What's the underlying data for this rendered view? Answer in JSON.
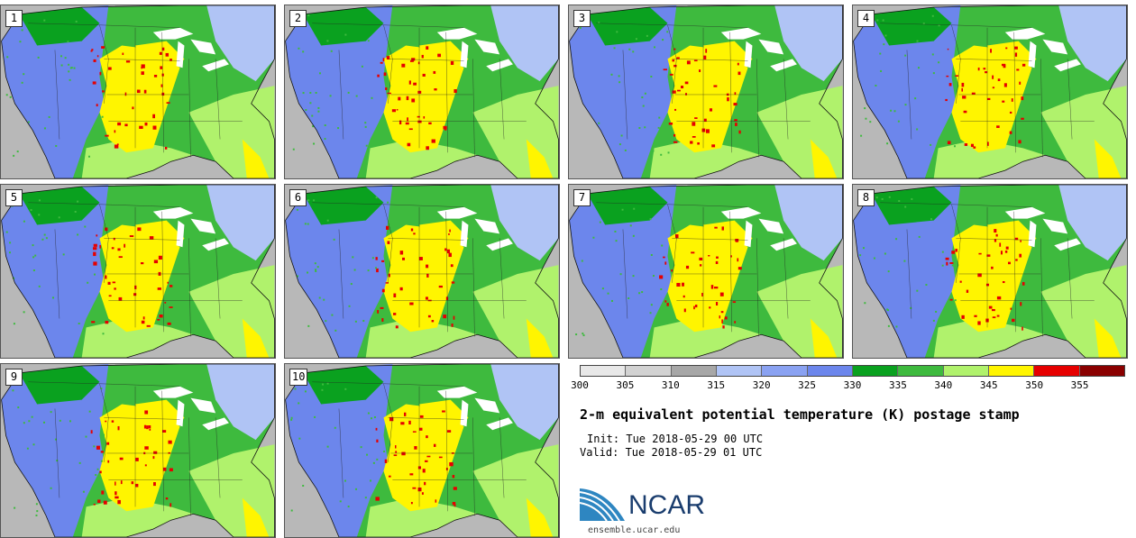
{
  "panels": [
    {
      "label": "1"
    },
    {
      "label": "2"
    },
    {
      "label": "3"
    },
    {
      "label": "4"
    },
    {
      "label": "5"
    },
    {
      "label": "6"
    },
    {
      "label": "7"
    },
    {
      "label": "8"
    },
    {
      "label": "9"
    },
    {
      "label": "10"
    }
  ],
  "legend": {
    "colors": [
      "#e8e8e8",
      "#d2d2d2",
      "#a7a7a7",
      "#b0c4f5",
      "#8aa2f2",
      "#6c86ec",
      "#0aa11f",
      "#3eba3e",
      "#b0f26c",
      "#fff500",
      "#e60000",
      "#8a0000"
    ],
    "ticks": [
      "300",
      "305",
      "310",
      "315",
      "320",
      "325",
      "330",
      "335",
      "340",
      "345",
      "350",
      "355"
    ]
  },
  "info": {
    "title": "2-m equivalent potential temperature (K) postage stamp",
    "init": "Init: Tue 2018-05-29 00 UTC",
    "valid": "Valid: Tue 2018-05-29 01 UTC"
  },
  "branding": {
    "logo_text": "NCAR",
    "site": "ensemble.ucar.edu",
    "logo_color": "#1a3d6e",
    "swoosh_color": "#2e86c1"
  },
  "map_colors": {
    "ocean_gray": "#b8b8b8",
    "blue_light": "#b0c4f5",
    "blue": "#6c86ec",
    "green_dark": "#0aa11f",
    "green": "#3eba3e",
    "green_light": "#b0f26c",
    "yellow": "#fff500",
    "red": "#e60000",
    "lakes": "#ffffff"
  }
}
